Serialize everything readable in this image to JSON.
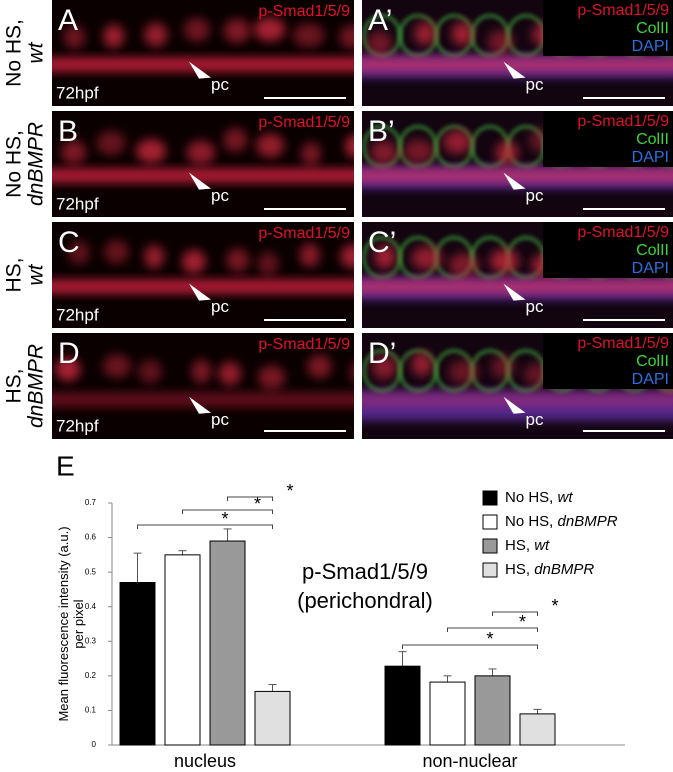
{
  "panels": {
    "rows": [
      {
        "label_lines": [
          "No HS,",
          "wt"
        ],
        "left": {
          "letter": "A",
          "stain": "p-Smad1/5/9",
          "stage": "72hpf",
          "arrow": "pc"
        },
        "right": {
          "letter": "A’",
          "stains": [
            "p-Smad1/5/9",
            "ColII",
            "DAPI"
          ],
          "arrow": "pc"
        }
      },
      {
        "label_lines": [
          "No HS,",
          "dnBMPR"
        ],
        "left": {
          "letter": "B",
          "stain": "p-Smad1/5/9",
          "stage": "72hpf",
          "arrow": "pc"
        },
        "right": {
          "letter": "B’",
          "stains": [
            "p-Smad1/5/9",
            "ColII",
            "DAPI"
          ],
          "arrow": "pc"
        }
      },
      {
        "label_lines": [
          "HS,",
          "wt"
        ],
        "left": {
          "letter": "C",
          "stain": "p-Smad1/5/9",
          "stage": "72hpf",
          "arrow": "pc"
        },
        "right": {
          "letter": "C’",
          "stains": [
            "p-Smad1/5/9",
            "ColII",
            "DAPI"
          ],
          "arrow": "pc"
        }
      },
      {
        "label_lines": [
          "HS,",
          "dnBMPR"
        ],
        "left": {
          "letter": "D",
          "stain": "p-Smad1/5/9",
          "stage": "72hpf",
          "arrow": "pc"
        },
        "right": {
          "letter": "D’",
          "stains": [
            "p-Smad1/5/9",
            "ColII",
            "DAPI"
          ],
          "arrow": "pc"
        }
      }
    ]
  },
  "chart_data": {
    "type": "bar",
    "figure_label": "E",
    "title": "p-Smad1/5/9",
    "subtitle": "(perichondral)",
    "ylabel": [
      "Mean fluorescence intensity (a.u.)",
      "per pixel"
    ],
    "categories": [
      "nucleus",
      "non-nuclear"
    ],
    "series": [
      {
        "name": "No HS, wt",
        "color": "#000000",
        "values": [
          0.47,
          0.228
        ],
        "errors": [
          0.085,
          0.042
        ]
      },
      {
        "name": "No HS, dnBMPR",
        "color": "#ffffff",
        "values": [
          0.55,
          0.182
        ],
        "errors": [
          0.012,
          0.018
        ]
      },
      {
        "name": "HS, wt",
        "color": "#999999",
        "values": [
          0.59,
          0.2
        ],
        "errors": [
          0.035,
          0.02
        ]
      },
      {
        "name": "HS, dnBMPR",
        "color": "#e0e0e0",
        "values": [
          0.155,
          0.09
        ],
        "errors": [
          0.02,
          0.013
        ]
      }
    ],
    "significance_labels": [
      "*",
      "*",
      "*",
      "*",
      "*",
      "*"
    ],
    "ylim": [
      0,
      0.7
    ],
    "yticks": [
      0,
      0.1,
      0.2,
      0.3,
      0.4,
      0.5,
      0.6,
      0.7
    ]
  }
}
